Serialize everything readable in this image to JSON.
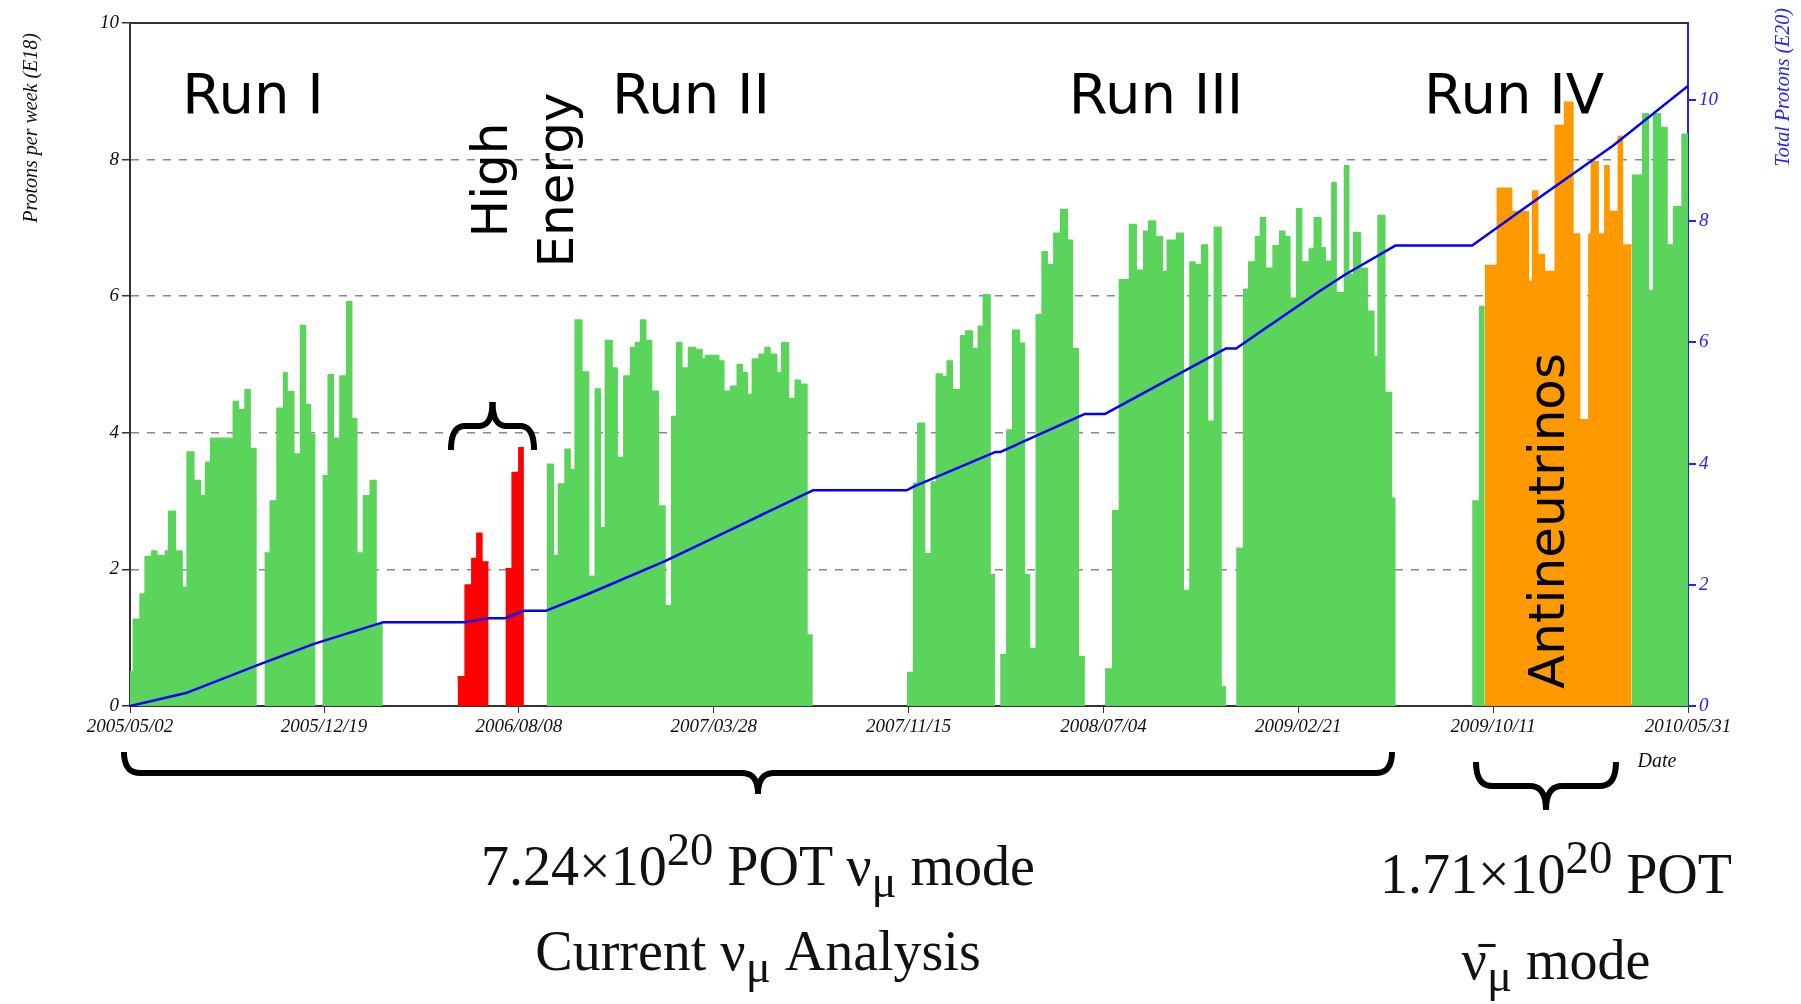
{
  "chart_data": {
    "type": "area",
    "xlabel": "Date",
    "ylabel": "Protons per week (E18)",
    "y2label": "Total Protons (E20)",
    "xlim": [
      "2005-05-02",
      "2010-05-31"
    ],
    "xticks": [
      {
        "value": "2005-05-02",
        "label": "2005/05/02"
      },
      {
        "value": "2005-12-19",
        "label": "2005/12/19"
      },
      {
        "value": "2006-08-08",
        "label": "2006/08/08"
      },
      {
        "value": "2007-03-28",
        "label": "2007/03/28"
      },
      {
        "value": "2007-11-15",
        "label": "2007/11/15"
      },
      {
        "value": "2008-07-04",
        "label": "2008/07/04"
      },
      {
        "value": "2009-02-21",
        "label": "2009/02/21"
      },
      {
        "value": "2009-10-11",
        "label": "2009/10/11"
      },
      {
        "value": "2010-05-31",
        "label": "2010/05/31"
      }
    ],
    "ylim": [
      0,
      10
    ],
    "yticks": [
      0,
      2,
      4,
      6,
      8,
      10
    ],
    "y2lim": [
      0,
      11.27
    ],
    "y2ticks": [
      0,
      2,
      4,
      6,
      8,
      10
    ],
    "grid": "y",
    "series": [
      {
        "color": "#5ad45a",
        "x": [
          "2005-05-02",
          "2005-05-06",
          "2005-05-06",
          "2005-05-14",
          "2005-05-14",
          "2005-05-20",
          "2005-05-20",
          "2005-05-28",
          "2005-05-28",
          "2005-06-03",
          "2005-06-03",
          "2005-06-13",
          "2005-06-13",
          "2005-06-17",
          "2005-06-17",
          "2005-06-25",
          "2005-06-25",
          "2005-07-03",
          "2005-07-03",
          "2005-07-09",
          "2005-07-09",
          "2005-07-17",
          "2005-07-17",
          "2005-07-25",
          "2005-07-25",
          "2005-07-31",
          "2005-07-31",
          "2005-08-06",
          "2005-08-06",
          "2005-09-02",
          "2005-09-02",
          "2005-09-08",
          "2005-09-08",
          "2005-09-16",
          "2005-09-16",
          "2005-09-22",
          "2005-09-22",
          "2005-09-30"
        ],
        "values": [
          0.5,
          0.5,
          1.27,
          1.27,
          1.64,
          1.64,
          2.19,
          2.19,
          2.27,
          2.27,
          2.2,
          2.2,
          2.27,
          2.27,
          2.85,
          2.85,
          2.27,
          2.27,
          1.74,
          1.74,
          3.72,
          3.72,
          3.3,
          3.3,
          3.08,
          3.08,
          3.57,
          3.57,
          3.92,
          3.92,
          4.46,
          4.46,
          4.34,
          4.34,
          4.63,
          4.63,
          3.77,
          3.77
        ]
      },
      {
        "color": "#5ad45a",
        "x": [
          "2005-10-09",
          "2005-10-16",
          "2005-10-16",
          "2005-10-24",
          "2005-10-24",
          "2005-11-01",
          "2005-11-01",
          "2005-11-05",
          "2005-11-05",
          "2005-11-13",
          "2005-11-13",
          "2005-11-21",
          "2005-11-21",
          "2005-11-27",
          "2005-11-27",
          "2005-12-03",
          "2005-12-03",
          "2005-12-09"
        ],
        "values": [
          2.24,
          2.24,
          3.0,
          3.0,
          4.36,
          4.36,
          4.88,
          4.88,
          4.6,
          4.6,
          3.69,
          3.69,
          5.57,
          5.57,
          4.41,
          4.41,
          3.97,
          3.97
        ]
      },
      {
        "color": "#5ad45a",
        "x": [
          "2005-12-17",
          "2005-12-24",
          "2005-12-24",
          "2005-12-30",
          "2005-12-30",
          "2006-01-07",
          "2006-01-07",
          "2006-01-15",
          "2006-01-15",
          "2006-01-21",
          "2006-01-21",
          "2006-01-27",
          "2006-01-27",
          "2006-02-04",
          "2006-02-04",
          "2006-02-12",
          "2006-02-12",
          "2006-02-19",
          "2006-02-19",
          "2006-02-27"
        ],
        "values": [
          3.37,
          3.37,
          4.85,
          4.85,
          3.92,
          3.92,
          4.83,
          4.83,
          5.92,
          5.92,
          4.21,
          4.21,
          2.24,
          2.24,
          3.08,
          3.08,
          3.3,
          3.3,
          1.2,
          1.2
        ]
      },
      {
        "color": "#5ad45a",
        "x": [
          "2006-09-10",
          "2006-09-18",
          "2006-09-18",
          "2006-09-24",
          "2006-09-24",
          "2006-10-02",
          "2006-10-02",
          "2006-10-08",
          "2006-10-08",
          "2006-10-14",
          "2006-10-14",
          "2006-10-22",
          "2006-10-22",
          "2006-10-30",
          "2006-10-30",
          "2006-11-07",
          "2006-11-07",
          "2006-11-13",
          "2006-11-13",
          "2006-11-19",
          "2006-11-19",
          "2006-11-27",
          "2006-11-27",
          "2006-12-03",
          "2006-12-03",
          "2006-12-11",
          "2006-12-11",
          "2006-12-19",
          "2006-12-19",
          "2006-12-25",
          "2006-12-25",
          "2006-12-31",
          "2006-12-31",
          "2007-01-06",
          "2007-01-06",
          "2007-01-13",
          "2007-01-13",
          "2007-01-21",
          "2007-01-21",
          "2007-01-29",
          "2007-01-29",
          "2007-02-06",
          "2007-02-06",
          "2007-02-12",
          "2007-02-12",
          "2007-02-18",
          "2007-02-18",
          "2007-02-26",
          "2007-02-26",
          "2007-03-06",
          "2007-03-06",
          "2007-03-14",
          "2007-03-14",
          "2007-03-18",
          "2007-03-18",
          "2007-04-03",
          "2007-04-03",
          "2007-04-09",
          "2007-04-09",
          "2007-04-17",
          "2007-04-17",
          "2007-04-25",
          "2007-04-25",
          "2007-05-01",
          "2007-05-01",
          "2007-05-07",
          "2007-05-07",
          "2007-05-13",
          "2007-05-13",
          "2007-05-21",
          "2007-05-21",
          "2007-05-28",
          "2007-05-28",
          "2007-06-03",
          "2007-06-03",
          "2007-06-11",
          "2007-06-11",
          "2007-06-17",
          "2007-06-17",
          "2007-06-25",
          "2007-06-25",
          "2007-07-03",
          "2007-07-03",
          "2007-07-09",
          "2007-07-09",
          "2007-07-17",
          "2007-07-17",
          "2007-07-24"
        ],
        "values": [
          3.54,
          3.54,
          2.2,
          2.2,
          3.25,
          3.25,
          3.76,
          3.76,
          3.46,
          3.46,
          5.65,
          5.65,
          4.89,
          4.89,
          1.9,
          1.9,
          4.64,
          4.64,
          2.61,
          2.61,
          5.35,
          5.35,
          4.95,
          4.95,
          3.64,
          3.64,
          4.83,
          4.83,
          5.25,
          5.25,
          5.32,
          5.32,
          5.65,
          5.65,
          5.35,
          5.35,
          4.61,
          4.61,
          2.93,
          2.93,
          1.47,
          1.47,
          4.24,
          4.24,
          5.32,
          5.32,
          4.95,
          4.95,
          5.25,
          5.25,
          5.22,
          5.22,
          5.08,
          5.08,
          5.13,
          5.13,
          5.05,
          5.05,
          4.61,
          4.61,
          4.68,
          4.68,
          5.0,
          5.0,
          4.88,
          4.88,
          4.56,
          4.56,
          5.08,
          5.08,
          5.15,
          5.15,
          5.25,
          5.25,
          5.15,
          5.15,
          4.88,
          4.88,
          5.32,
          5.32,
          4.5,
          4.5,
          4.77,
          4.77,
          4.71,
          4.71,
          1.04,
          1.04
        ]
      },
      {
        "color": "#5ad45a",
        "x": [
          "2007-11-13",
          "2007-11-21",
          "2007-11-21",
          "2007-11-26",
          "2007-11-26",
          "2007-12-04",
          "2007-12-04",
          "2007-12-12",
          "2007-12-12",
          "2007-12-18",
          "2007-12-18",
          "2007-12-25",
          "2007-12-25",
          "2007-12-31",
          "2007-12-31",
          "2008-01-06",
          "2008-01-06",
          "2008-01-16",
          "2008-01-16",
          "2008-01-22",
          "2008-01-22",
          "2008-01-30",
          "2008-01-30",
          "2008-02-06",
          "2008-02-06",
          "2008-02-12",
          "2008-02-12",
          "2008-02-20",
          "2008-02-20",
          "2008-02-26"
        ],
        "values": [
          0.49,
          0.49,
          3.26,
          3.26,
          4.14,
          4.14,
          2.23,
          2.23,
          3.28,
          3.28,
          4.86,
          4.86,
          4.82,
          4.82,
          5.05,
          5.05,
          4.63,
          4.63,
          5.42,
          5.42,
          5.49,
          5.49,
          5.23,
          5.23,
          5.56,
          5.56,
          6.02,
          6.02,
          1.92,
          1.92
        ]
      },
      {
        "color": "#5ad45a",
        "x": [
          "2008-03-03",
          "2008-03-11",
          "2008-03-11",
          "2008-03-18",
          "2008-03-18",
          "2008-03-26",
          "2008-03-26",
          "2008-04-01",
          "2008-04-01",
          "2008-04-07",
          "2008-04-07",
          "2008-04-15",
          "2008-04-15",
          "2008-04-22",
          "2008-04-22",
          "2008-04-28",
          "2008-04-28",
          "2008-05-06",
          "2008-05-06",
          "2008-05-14",
          "2008-05-14",
          "2008-05-22",
          "2008-05-22",
          "2008-05-28",
          "2008-05-28",
          "2008-06-04",
          "2008-06-04",
          "2008-06-12"
        ],
        "values": [
          0.75,
          0.75,
          4.04,
          4.04,
          5.5,
          5.5,
          5.31,
          5.31,
          1.92,
          1.92,
          0.84,
          0.84,
          5.73,
          5.73,
          6.65,
          6.65,
          6.46,
          6.46,
          6.92,
          6.92,
          7.27,
          7.27,
          6.82,
          6.82,
          5.23,
          5.23,
          0.72,
          0.72
        ]
      },
      {
        "color": "#5ad45a",
        "x": [
          "2008-07-06",
          "2008-07-15",
          "2008-07-15",
          "2008-07-23",
          "2008-07-23",
          "2008-08-04",
          "2008-08-04",
          "2008-08-12",
          "2008-08-12",
          "2008-08-21",
          "2008-08-21",
          "2008-08-27",
          "2008-08-27",
          "2008-09-04",
          "2008-09-04",
          "2008-09-12",
          "2008-09-12",
          "2008-09-18",
          "2008-09-18",
          "2008-09-29",
          "2008-09-29",
          "2008-10-07",
          "2008-10-07",
          "2008-10-15",
          "2008-10-15",
          "2008-10-21",
          "2008-10-21",
          "2008-10-29",
          "2008-10-29",
          "2008-11-05",
          "2008-11-05",
          "2008-11-13",
          "2008-11-13",
          "2008-11-21",
          "2008-11-21",
          "2008-11-27"
        ],
        "values": [
          0.54,
          0.54,
          2.86,
          2.86,
          6.24,
          6.24,
          7.05,
          7.05,
          6.38,
          6.38,
          6.95,
          6.95,
          7.1,
          7.1,
          6.87,
          6.87,
          6.36,
          6.36,
          6.82,
          6.82,
          6.92,
          6.92,
          1.69,
          1.69,
          6.5,
          6.5,
          6.46,
          6.46,
          6.75,
          6.75,
          4.17,
          4.17,
          7.01,
          7.01,
          0.28,
          0.28
        ]
      },
      {
        "color": "#5ad45a",
        "x": [
          "2008-12-09",
          "2008-12-18",
          "2008-12-18",
          "2008-12-24",
          "2008-12-24",
          "2009-01-01",
          "2009-01-01",
          "2009-01-07",
          "2009-01-07",
          "2009-01-13",
          "2009-01-13",
          "2009-01-22",
          "2009-01-22",
          "2009-01-30",
          "2009-01-30",
          "2009-02-05",
          "2009-02-05",
          "2009-02-11",
          "2009-02-11",
          "2009-02-19",
          "2009-02-19",
          "2009-02-25",
          "2009-02-25",
          "2009-03-06",
          "2009-03-06",
          "2009-03-12",
          "2009-03-12",
          "2009-03-20",
          "2009-03-20",
          "2009-03-25",
          "2009-03-25",
          "2009-04-02",
          "2009-04-02",
          "2009-04-07",
          "2009-04-07",
          "2009-04-17",
          "2009-04-17",
          "2009-04-22",
          "2009-04-22",
          "2009-04-28",
          "2009-04-28",
          "2009-05-06",
          "2009-05-06",
          "2009-05-14",
          "2009-05-14",
          "2009-05-22",
          "2009-05-22",
          "2009-05-27",
          "2009-05-27",
          "2009-06-04",
          "2009-06-04",
          "2009-06-12",
          "2009-06-12",
          "2009-06-17"
        ],
        "values": [
          2.31,
          2.31,
          6.1,
          6.1,
          6.5,
          6.5,
          6.87,
          6.87,
          7.15,
          7.15,
          6.41,
          6.41,
          6.74,
          6.74,
          6.95,
          6.95,
          6.87,
          6.87,
          5.97,
          5.97,
          7.28,
          7.28,
          6.5,
          6.5,
          6.69,
          6.69,
          7.15,
          7.15,
          6.71,
          6.71,
          6.51,
          6.51,
          7.66,
          7.66,
          6.05,
          6.05,
          7.91,
          7.91,
          6.32,
          6.32,
          6.93,
          6.93,
          6.41,
          6.41,
          5.78,
          5.78,
          5.12,
          5.12,
          7.18,
          7.18,
          4.59,
          4.59,
          3.04,
          3.04
        ]
      },
      {
        "color": "#5ad45a",
        "x": [
          "2009-09-16",
          "2009-09-25",
          "2009-09-25",
          "2009-10-01"
        ],
        "values": [
          3.0,
          3.0,
          5.85,
          5.85
        ]
      },
      {
        "color": "#5ad45a",
        "x": [
          "2010-03-25",
          "2010-04-07",
          "2010-04-07",
          "2010-04-14",
          "2010-04-14",
          "2010-04-20",
          "2010-04-20",
          "2010-04-28",
          "2010-04-28",
          "2010-05-06",
          "2010-05-06",
          "2010-05-14",
          "2010-05-14",
          "2010-05-24",
          "2010-05-24",
          "2010-05-31"
        ],
        "values": [
          7.77,
          7.77,
          8.67,
          8.67,
          6.08,
          6.08,
          8.67,
          8.67,
          8.47,
          8.47,
          6.75,
          6.75,
          7.31,
          7.31,
          8.37,
          8.37
        ]
      },
      {
        "color": "#ff0000",
        "x": [
          "2006-05-27",
          "2006-06-05",
          "2006-06-05",
          "2006-06-13",
          "2006-06-13",
          "2006-06-19",
          "2006-06-19",
          "2006-06-25",
          "2006-06-25",
          "2006-07-03"
        ],
        "values": [
          0.43,
          0.43,
          1.77,
          1.77,
          2.16,
          2.16,
          2.53,
          2.53,
          2.11,
          2.11
        ]
      },
      {
        "color": "#ff0000",
        "x": [
          "2006-07-23",
          "2006-07-31",
          "2006-07-31",
          "2006-08-08",
          "2006-08-08",
          "2006-08-14"
        ],
        "values": [
          2.01,
          2.01,
          3.42,
          3.42,
          3.78,
          3.78
        ]
      },
      {
        "color": "#ff9900",
        "x": [
          "2009-10-01",
          "2009-10-16",
          "2009-10-16",
          "2009-11-02",
          "2009-11-02",
          "2009-11-22",
          "2009-11-22",
          "2009-11-27",
          "2009-11-27",
          "2009-12-03",
          "2009-12-03",
          "2009-12-11",
          "2009-12-11",
          "2009-12-24",
          "2009-12-24",
          "2010-01-04",
          "2010-01-04",
          "2010-01-14",
          "2010-01-14",
          "2010-01-22",
          "2010-01-22",
          "2010-02-02",
          "2010-02-02",
          "2010-02-05",
          "2010-02-05",
          "2010-02-13",
          "2010-02-13",
          "2010-02-21",
          "2010-02-21",
          "2010-02-26",
          "2010-02-26",
          "2010-03-09",
          "2010-03-09",
          "2010-03-14",
          "2010-03-14",
          "2010-03-25"
        ],
        "values": [
          6.45,
          6.45,
          7.58,
          7.58,
          7.24,
          7.24,
          6.22,
          6.22,
          7.54,
          7.54,
          6.61,
          6.61,
          6.36,
          6.36,
          8.5,
          8.5,
          8.84,
          8.84,
          6.91,
          6.91,
          4.19,
          4.19,
          6.91,
          6.91,
          7.97,
          7.97,
          6.91,
          6.91,
          7.91,
          7.91,
          7.24,
          7.24,
          8.34,
          8.34,
          6.75,
          6.75
        ]
      },
      {
        "type": "line",
        "axis": "y2",
        "color": "#0000ff",
        "x": [
          "2005-05-02",
          "2005-07-09",
          "2005-09-30",
          "2005-12-08",
          "2006-02-27",
          "2006-06-05",
          "2006-07-03",
          "2006-07-23",
          "2006-08-14",
          "2006-09-09",
          "2006-10-28",
          "2007-01-29",
          "2007-04-25",
          "2007-07-24",
          "2007-11-13",
          "2007-11-21",
          "2008-02-26",
          "2008-03-03",
          "2008-06-12",
          "2008-07-06",
          "2008-11-27",
          "2008-12-09",
          "2009-03-20",
          "2009-04-18",
          "2009-06-17",
          "2009-09-16",
          "2009-12-03",
          "2010-03-03",
          "2010-05-31"
        ],
        "values": [
          0,
          0.22,
          0.67,
          1.03,
          1.38,
          1.38,
          1.45,
          1.45,
          1.57,
          1.57,
          1.84,
          2.39,
          2.96,
          3.56,
          3.56,
          3.62,
          4.19,
          4.19,
          4.82,
          4.82,
          5.9,
          5.9,
          6.86,
          7.12,
          7.6,
          7.6,
          8.37,
          9.25,
          10.23
        ]
      }
    ],
    "annotations": [
      "Run I",
      "Run II",
      "Run III",
      "Run IV",
      "High Energy",
      "Antineutrinos",
      "7.24×10$^{20}$ POT ν$_{μ}$ mode",
      "Current ν$_{μ}$ Analysis",
      "1.71×10$^{20}$ POT",
      "ν̄$_{μ}$ mode"
    ]
  }
}
